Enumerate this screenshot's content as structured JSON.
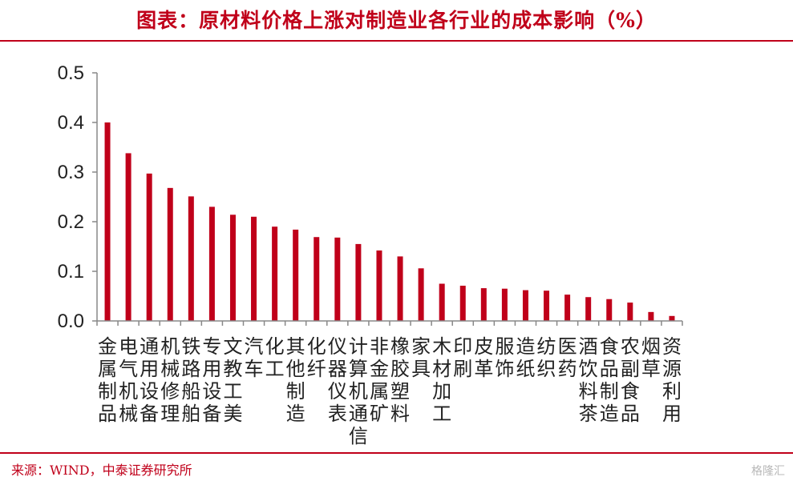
{
  "header": {
    "title": "图表：原材料价格上涨对制造业各行业的成本影响（%）"
  },
  "footer": {
    "source": "来源：WIND，中泰证券研究所",
    "watermark": "格隆汇"
  },
  "colors": {
    "accent": "#c0001a",
    "bar": "#c0001a"
  },
  "chart_data": {
    "type": "bar",
    "title": "",
    "xlabel": "",
    "ylabel": "",
    "ylim": [
      0,
      0.5
    ],
    "y_ticks": [
      "0.0",
      "0.1",
      "0.2",
      "0.3",
      "0.4",
      "0.5"
    ],
    "grid": false,
    "categories": [
      "金属制品",
      "电气机械",
      "通用设备",
      "机械修理",
      "铁路船舶",
      "专用设备",
      "文教工美",
      "汽车",
      "化工",
      "其他制造",
      "化纤",
      "仪器仪表",
      "计算机通信",
      "非金属矿",
      "橡胶塑料",
      "家具",
      "木材加工",
      "印刷",
      "皮革",
      "服饰",
      "造纸",
      "纺织",
      "医药",
      "酒饮料茶",
      "食品制造",
      "农副食品",
      "烟草",
      "资源利用"
    ],
    "values": [
      0.4,
      0.338,
      0.297,
      0.268,
      0.251,
      0.23,
      0.214,
      0.21,
      0.19,
      0.184,
      0.169,
      0.168,
      0.155,
      0.142,
      0.13,
      0.106,
      0.075,
      0.071,
      0.066,
      0.065,
      0.062,
      0.061,
      0.053,
      0.048,
      0.044,
      0.037,
      0.018,
      0.01
    ]
  }
}
